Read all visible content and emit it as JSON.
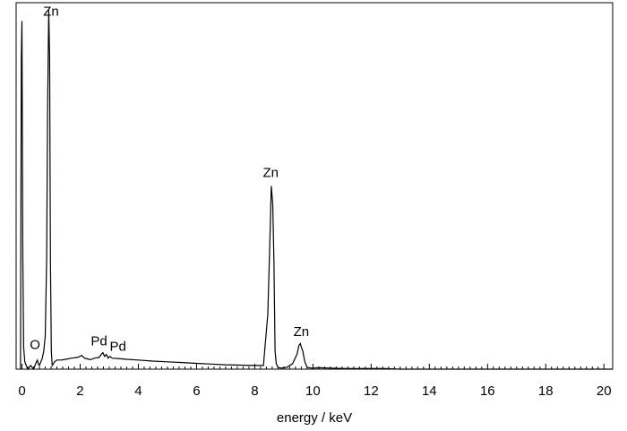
{
  "chart_data": {
    "type": "line",
    "title": "",
    "xlabel": "energy / keV",
    "ylabel": "",
    "xlim": [
      -0.2,
      20.3
    ],
    "ylim": [
      0,
      1.0
    ],
    "xticks": [
      "0",
      "2",
      "4",
      "6",
      "8",
      "10",
      "12",
      "14",
      "16",
      "18",
      "20"
    ],
    "grid": false,
    "series": [
      {
        "x": [
          -0.05,
          -0.02,
          0.0,
          0.03,
          0.06,
          0.1,
          0.2,
          0.3,
          0.4,
          0.45,
          0.5,
          0.53,
          0.56,
          0.6,
          0.65,
          0.7,
          0.75,
          0.8,
          0.85,
          0.88,
          0.92,
          0.95,
          0.98,
          1.01,
          1.04,
          1.08,
          1.12,
          1.2,
          1.35,
          1.5,
          1.7,
          1.9,
          2.0,
          2.05,
          2.15,
          2.25,
          2.35,
          2.5,
          2.65,
          2.72,
          2.78,
          2.84,
          2.9,
          2.96,
          3.02,
          3.1,
          3.3,
          3.6,
          4.0,
          4.5,
          5.0,
          5.5,
          6.0,
          6.5,
          7.0,
          7.5,
          8.0,
          8.3,
          8.45,
          8.52,
          8.57,
          8.62,
          8.66,
          8.7,
          8.74,
          8.8,
          8.9,
          9.1,
          9.3,
          9.45,
          9.52,
          9.57,
          9.6,
          9.65,
          9.72,
          9.8,
          9.95,
          10.2,
          10.6,
          11.0,
          11.5,
          12.0,
          12.5,
          13.0,
          14.0,
          16.0,
          18.0,
          20.3
        ],
        "values": [
          0.0,
          0.85,
          0.95,
          0.3,
          0.06,
          0.02,
          0.0,
          0.01,
          0.0,
          0.01,
          0.02,
          0.025,
          0.015,
          0.01,
          0.02,
          0.03,
          0.05,
          0.09,
          0.3,
          0.7,
          0.98,
          0.85,
          0.3,
          0.05,
          0.01,
          0.015,
          0.02,
          0.025,
          0.025,
          0.027,
          0.03,
          0.032,
          0.035,
          0.038,
          0.03,
          0.028,
          0.026,
          0.03,
          0.032,
          0.04,
          0.045,
          0.035,
          0.04,
          0.03,
          0.035,
          0.03,
          0.029,
          0.027,
          0.025,
          0.022,
          0.02,
          0.018,
          0.016,
          0.014,
          0.012,
          0.011,
          0.01,
          0.01,
          0.15,
          0.35,
          0.5,
          0.45,
          0.3,
          0.05,
          0.015,
          0.005,
          0.003,
          0.005,
          0.015,
          0.04,
          0.065,
          0.07,
          0.06,
          0.05,
          0.02,
          0.005,
          0.003,
          0.004,
          0.003,
          0.002,
          0.0015,
          0.002,
          0.0015,
          0.0,
          0.0,
          0.0,
          0.0,
          0.0
        ]
      }
    ],
    "annotations": [
      {
        "text": "Zn",
        "x": 1.0,
        "y": 0.96
      },
      {
        "text": "O",
        "x": 0.45,
        "y": 0.05
      },
      {
        "text": "Pd",
        "x": 2.65,
        "y": 0.06
      },
      {
        "text": "Pd",
        "x": 3.3,
        "y": 0.045
      },
      {
        "text": "Zn",
        "x": 8.55,
        "y": 0.52
      },
      {
        "text": "Zn",
        "x": 9.6,
        "y": 0.085
      }
    ]
  }
}
